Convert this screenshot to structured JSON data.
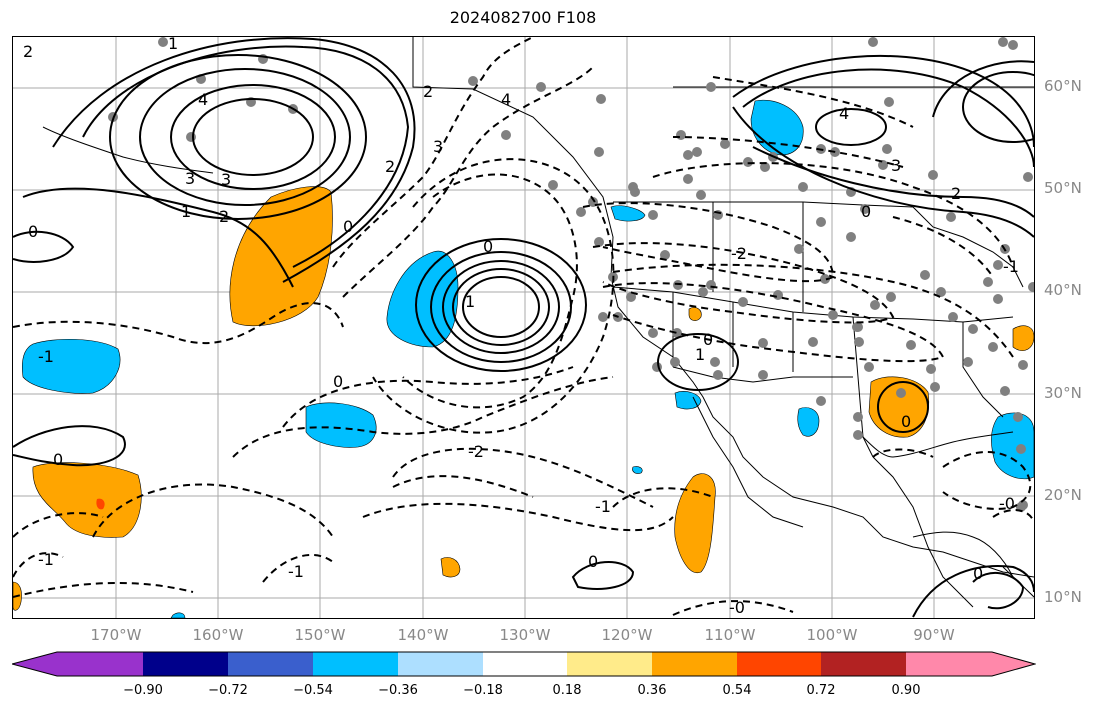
{
  "title": "2024082700 F108",
  "lat_labels": [
    "60°N",
    "50°N",
    "40°N",
    "30°N",
    "20°N",
    "10°N"
  ],
  "lon_labels": [
    "170°W",
    "160°W",
    "150°W",
    "140°W",
    "130°W",
    "120°W",
    "110°W",
    "100°W",
    "90°W"
  ],
  "colorbar": {
    "ticks": [
      "−0.90",
      "−0.72",
      "−0.54",
      "−0.36",
      "−0.18",
      "0.18",
      "0.36",
      "0.54",
      "0.72",
      "0.90"
    ],
    "colors": [
      "#9932CC",
      "#00008B",
      "#3A5FCD",
      "#00BFFF",
      "#ADDFFF",
      "#FFFFFF",
      "#FFEB8A",
      "#FFA500",
      "#FF4500",
      "#B22222",
      "#FF88AA"
    ]
  },
  "contour_labels": [
    "2",
    "1",
    "4",
    "3",
    "3",
    "2",
    "1",
    "2",
    "0",
    "0",
    "4",
    "3",
    "2",
    "0",
    "0",
    "4",
    "3",
    "2",
    "0",
    "-2",
    "1",
    "0",
    "0",
    "0",
    "-1",
    "-1",
    "-2",
    "-1",
    "0",
    "-0",
    "-0",
    "1",
    "0",
    "-1",
    "-1"
  ],
  "colors": {
    "positive_fill": "#FFA500",
    "negative_fill": "#00BFFF",
    "red_fill": "#FF4500",
    "station_dot": "#808080"
  }
}
